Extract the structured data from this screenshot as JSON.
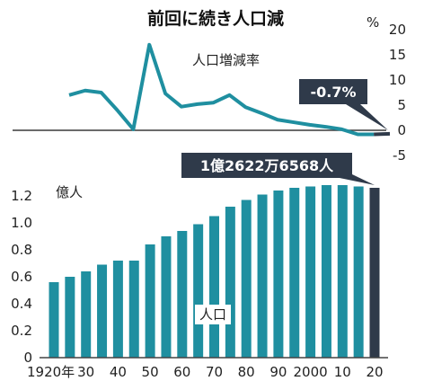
{
  "chart_data": [
    {
      "type": "line",
      "title": "前回に続き人口減",
      "series_label": "人口増減率",
      "unit_label": "%",
      "ylim": [
        -5,
        20
      ],
      "yticks": [
        "20",
        "15",
        "10",
        "5",
        "0",
        "-5"
      ],
      "x": [
        1920,
        1925,
        1930,
        1935,
        1940,
        1945,
        1950,
        1955,
        1960,
        1965,
        1970,
        1975,
        1980,
        1985,
        1990,
        1995,
        2000,
        2005,
        2010,
        2015,
        2020
      ],
      "values": [
        7.0,
        7.9,
        7.5,
        4.0,
        0.2,
        17.0,
        7.3,
        4.7,
        5.2,
        5.5,
        7.0,
        4.6,
        3.4,
        2.1,
        1.6,
        1.1,
        0.7,
        0.2,
        -0.8,
        -0.8,
        -0.7
      ],
      "annotation": "-0.7%"
    },
    {
      "type": "bar",
      "unit_label": "億人",
      "series_label": "人口",
      "ylim": [
        0,
        1.3
      ],
      "yticks": [
        "0",
        "0.2",
        "0.4",
        "0.6",
        "0.8",
        "1.0",
        "1.2"
      ],
      "x": [
        1920,
        1925,
        1930,
        1935,
        1940,
        1945,
        1950,
        1955,
        1960,
        1965,
        1970,
        1975,
        1980,
        1985,
        1990,
        1995,
        2000,
        2005,
        2010,
        2015,
        2020
      ],
      "values": [
        0.56,
        0.6,
        0.64,
        0.69,
        0.72,
        0.72,
        0.84,
        0.9,
        0.94,
        0.99,
        1.05,
        1.12,
        1.17,
        1.21,
        1.24,
        1.26,
        1.27,
        1.28,
        1.28,
        1.27,
        1.26
      ],
      "xticklabels": [
        "1920年",
        "30",
        "40",
        "50",
        "60",
        "70",
        "80",
        "90",
        "2000",
        "10",
        "20"
      ],
      "xtick_values": [
        1920,
        1930,
        1940,
        1950,
        1960,
        1970,
        1980,
        1990,
        2000,
        2010,
        2020
      ],
      "annotation": "1億2622万6568人"
    }
  ],
  "colors": {
    "series": "#1f8fa0",
    "highlight": "#2f3a4a",
    "zero_line": "#3a3a3a"
  }
}
